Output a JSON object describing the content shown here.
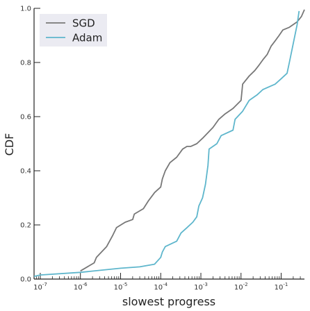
{
  "chart_data": {
    "type": "line",
    "title": "",
    "xlabel": "slowest progress",
    "ylabel": "CDF",
    "xscale": "log",
    "xlim": [
      7e-08,
      0.38
    ],
    "ylim": [
      0,
      1
    ],
    "grid": false,
    "legend": "top-left",
    "x_ticks": [
      {
        "value": 1e-07,
        "base": "10",
        "exp": "-7"
      },
      {
        "value": 1e-06,
        "base": "10",
        "exp": "-6"
      },
      {
        "value": 1e-05,
        "base": "10",
        "exp": "-5"
      },
      {
        "value": 0.0001,
        "base": "10",
        "exp": "-4"
      },
      {
        "value": 0.001,
        "base": "10",
        "exp": "-3"
      },
      {
        "value": 0.01,
        "base": "10",
        "exp": "-2"
      },
      {
        "value": 0.1,
        "base": "10",
        "exp": "-1"
      }
    ],
    "y_ticks": [
      {
        "value": 0.0,
        "label": "0.0"
      },
      {
        "value": 0.2,
        "label": "0.2"
      },
      {
        "value": 0.4,
        "label": "0.4"
      },
      {
        "value": 0.6,
        "label": "0.6"
      },
      {
        "value": 0.8,
        "label": "0.8"
      },
      {
        "value": 1.0,
        "label": "1.0"
      }
    ],
    "series": [
      {
        "name": "SGD",
        "color": "#777777",
        "points": [
          [
            1e-06,
            0.03
          ],
          [
            2.2e-06,
            0.06
          ],
          [
            2.5e-06,
            0.08
          ],
          [
            4.5e-06,
            0.12
          ],
          [
            6.3e-06,
            0.16
          ],
          [
            7.9e-06,
            0.19
          ],
          [
            1.3e-05,
            0.21
          ],
          [
            2e-05,
            0.22
          ],
          [
            2.2e-05,
            0.24
          ],
          [
            3.7e-05,
            0.26
          ],
          [
            5e-05,
            0.29
          ],
          [
            7.1e-05,
            0.32
          ],
          [
            0.0001,
            0.34
          ],
          [
            0.00011,
            0.37
          ],
          [
            0.00013,
            0.4
          ],
          [
            0.00017,
            0.43
          ],
          [
            0.00025,
            0.45
          ],
          [
            0.00035,
            0.48
          ],
          [
            0.00045,
            0.49
          ],
          [
            0.00056,
            0.49
          ],
          [
            0.00079,
            0.5
          ],
          [
            0.0011,
            0.52
          ],
          [
            0.002,
            0.56
          ],
          [
            0.0028,
            0.59
          ],
          [
            0.004,
            0.61
          ],
          [
            0.0063,
            0.63
          ],
          [
            0.01,
            0.66
          ],
          [
            0.011,
            0.72
          ],
          [
            0.016,
            0.75
          ],
          [
            0.022,
            0.77
          ],
          [
            0.028,
            0.79
          ],
          [
            0.035,
            0.81
          ],
          [
            0.045,
            0.83
          ],
          [
            0.056,
            0.86
          ],
          [
            0.071,
            0.88
          ],
          [
            0.089,
            0.9
          ],
          [
            0.11,
            0.92
          ],
          [
            0.16,
            0.93
          ],
          [
            0.25,
            0.95
          ],
          [
            0.32,
            0.97
          ],
          [
            0.38,
            0.995
          ]
        ]
      },
      {
        "name": "Adam",
        "color": "#5eb6cc",
        "points": [
          [
            7e-08,
            0.01
          ],
          [
            1e-07,
            0.015
          ],
          [
            1e-06,
            0.025
          ],
          [
            1e-05,
            0.04
          ],
          [
            3e-05,
            0.045
          ],
          [
            7e-05,
            0.055
          ],
          [
            0.0001,
            0.08
          ],
          [
            0.00011,
            0.1
          ],
          [
            0.00013,
            0.12
          ],
          [
            0.00025,
            0.14
          ],
          [
            0.00032,
            0.17
          ],
          [
            0.00045,
            0.19
          ],
          [
            0.00063,
            0.21
          ],
          [
            0.00079,
            0.23
          ],
          [
            0.00089,
            0.27
          ],
          [
            0.0011,
            0.3
          ],
          [
            0.0013,
            0.35
          ],
          [
            0.0015,
            0.42
          ],
          [
            0.0016,
            0.48
          ],
          [
            0.0025,
            0.5
          ],
          [
            0.0032,
            0.53
          ],
          [
            0.0063,
            0.55
          ],
          [
            0.0071,
            0.59
          ],
          [
            0.011,
            0.62
          ],
          [
            0.016,
            0.66
          ],
          [
            0.025,
            0.68
          ],
          [
            0.035,
            0.7
          ],
          [
            0.071,
            0.72
          ],
          [
            0.1,
            0.74
          ],
          [
            0.14,
            0.76
          ],
          [
            0.16,
            0.8
          ],
          [
            0.2,
            0.87
          ],
          [
            0.25,
            0.94
          ],
          [
            0.28,
            0.99
          ]
        ]
      }
    ]
  }
}
